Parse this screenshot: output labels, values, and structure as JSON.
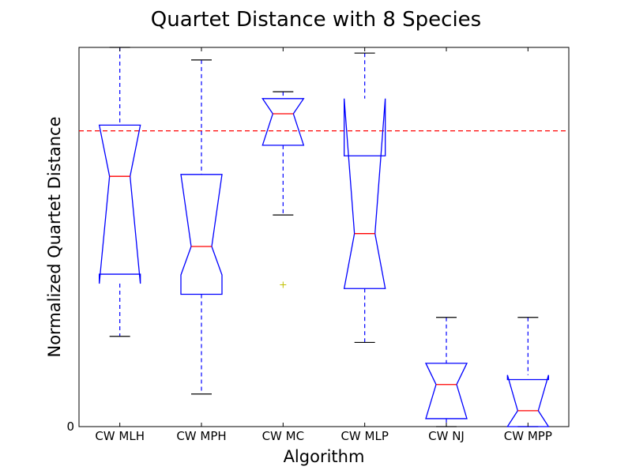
{
  "chart_data": {
    "type": "boxplot",
    "title": "Quartet Distance with 8 Species",
    "xlabel": "Algorithm",
    "ylabel": "Normalized Quartet Distance",
    "ylim": [
      0,
      1.0
    ],
    "ytick_labels": [
      "0"
    ],
    "categories": [
      "CW MLH",
      "CW MPH",
      "CW MC",
      "CW MLP",
      "CW NJ",
      "CW MPP"
    ],
    "boxes": [
      {
        "label": "CW MLH",
        "whisker_low": 0.238,
        "q1": 0.402,
        "median": 0.66,
        "q3": 0.795,
        "whisker_high": 1.0,
        "notch_low": 0.377,
        "notch_high": 0.795,
        "outliers": []
      },
      {
        "label": "CW MPH",
        "whisker_low": 0.086,
        "q1": 0.349,
        "median": 0.475,
        "q3": 0.665,
        "whisker_high": 0.967,
        "notch_low": 0.4,
        "notch_high": 0.665,
        "outliers": []
      },
      {
        "label": "CW MC",
        "whisker_low": 0.558,
        "q1": 0.742,
        "median": 0.825,
        "q3": 0.865,
        "whisker_high": 0.883,
        "notch_low": 0.742,
        "notch_high": 0.865,
        "outliers": [
          0.374
        ]
      },
      {
        "label": "CW MLP",
        "whisker_low": 0.222,
        "q1": 0.364,
        "median": 0.509,
        "q3": 0.714,
        "whisker_high": 0.985,
        "notch_low": 0.364,
        "notch_high": 0.865,
        "outliers": []
      },
      {
        "label": "CW NJ",
        "whisker_low": 0.0,
        "q1": 0.021,
        "median": 0.111,
        "q3": 0.167,
        "whisker_high": 0.288,
        "notch_low": 0.021,
        "notch_high": 0.167,
        "outliers": []
      },
      {
        "label": "CW MPP",
        "whisker_low": 0.0,
        "q1": 0.0,
        "median": 0.042,
        "q3": 0.124,
        "whisker_high": 0.288,
        "notch_low": 0.0,
        "notch_high": 0.136,
        "outliers": []
      }
    ],
    "reference_line": {
      "value": 0.78,
      "style": "dashed"
    },
    "grid": false,
    "colors": {
      "box": "#0000ff",
      "median": "#ff0000",
      "whisker": "#0000ff",
      "cap": "#000000",
      "outlier": "#bfbf00",
      "reference_line": "#ff0000"
    }
  }
}
